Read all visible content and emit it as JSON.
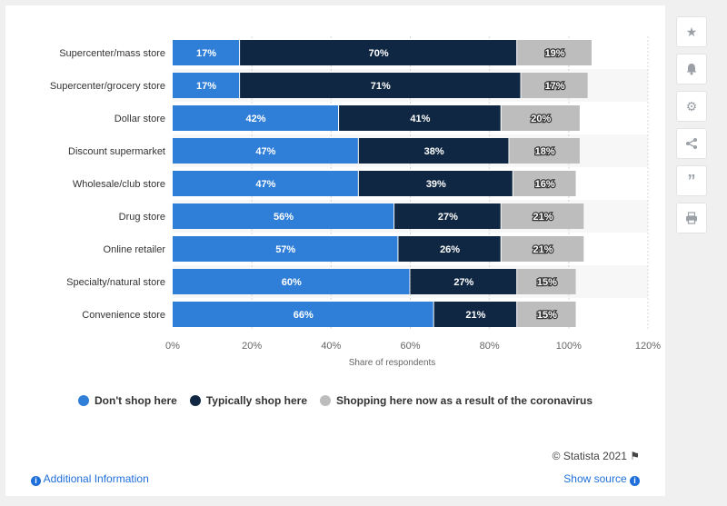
{
  "chart_data": {
    "type": "bar",
    "orientation": "horizontal",
    "stacked": true,
    "categories": [
      "Supercenter/mass store",
      "Supercenter/grocery store",
      "Dollar store",
      "Discount supermarket",
      "Wholesale/club store",
      "Drug store",
      "Online retailer",
      "Specialty/natural store",
      "Convenience store"
    ],
    "series": [
      {
        "name": "Don't shop here",
        "color": "#2f7ed8",
        "values": [
          17,
          17,
          42,
          47,
          47,
          56,
          57,
          60,
          66
        ]
      },
      {
        "name": "Typically shop here",
        "color": "#0f2742",
        "values": [
          70,
          71,
          41,
          38,
          39,
          27,
          26,
          27,
          21
        ]
      },
      {
        "name": "Shopping here now as a result of the coronavirus",
        "color": "#bdbdbd",
        "values": [
          19,
          17,
          20,
          18,
          16,
          21,
          21,
          15,
          15
        ]
      }
    ],
    "xlabel": "Share of respondents",
    "ylabel": "",
    "xlim": [
      0,
      120
    ],
    "ticks": [
      "0%",
      "20%",
      "40%",
      "60%",
      "80%",
      "100%",
      "120%"
    ],
    "grid": true,
    "legend_position": "bottom"
  },
  "footer": {
    "credit": "© Statista 2021",
    "additional_info": "Additional Information",
    "show_source": "Show source"
  },
  "sidebar": {
    "icons": [
      "star-icon",
      "bell-icon",
      "gear-icon",
      "share-icon",
      "quote-icon",
      "print-icon"
    ]
  }
}
